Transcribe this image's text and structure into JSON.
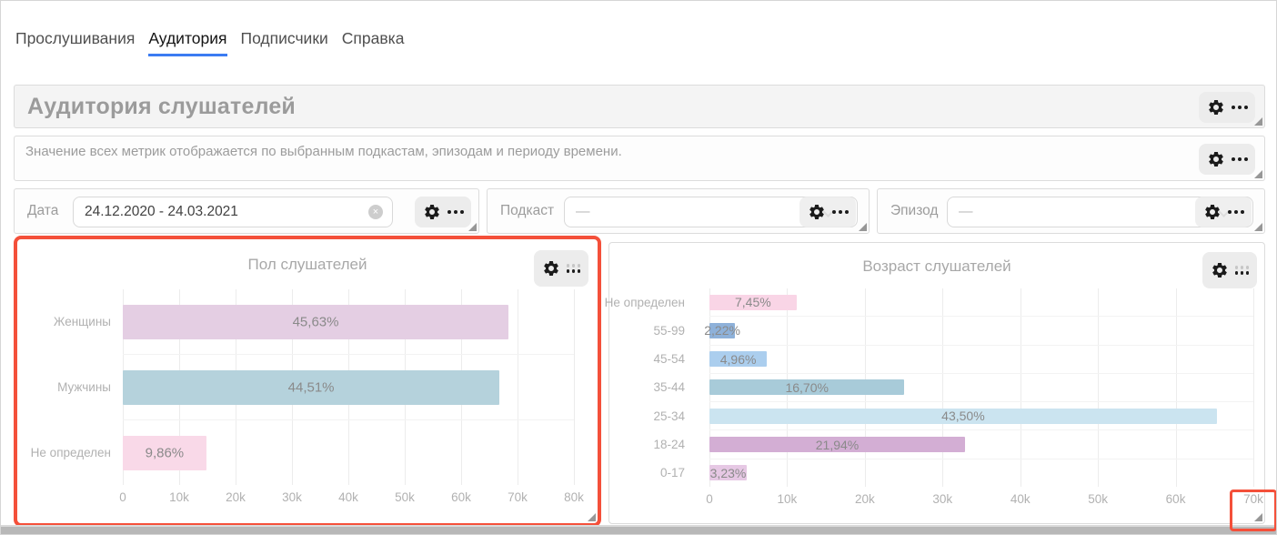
{
  "tabs": {
    "items": [
      {
        "label": "Прослушивания",
        "active": false
      },
      {
        "label": "Аудитория",
        "active": true
      },
      {
        "label": "Подписчики",
        "active": false
      },
      {
        "label": "Справка",
        "active": false
      }
    ]
  },
  "header": {
    "title": "Аудитория слушателей"
  },
  "description": {
    "text": "Значение всех метрик отображается по выбранным подкастам, эпизодам и периоду времени."
  },
  "filters": {
    "date": {
      "label": "Дата",
      "value": "24.12.2020 - 24.03.2021"
    },
    "podcast": {
      "label": "Подкаст",
      "value": "—"
    },
    "episode": {
      "label": "Эпизод",
      "value": "—"
    }
  },
  "icons": {
    "gear": "gear-icon",
    "ellipsis": "ellipsis-icon",
    "drag_dots": "drag-dots-icon",
    "clear": "×",
    "chevron_down": "chevron-down-icon",
    "resize": "resize-handle-icon"
  },
  "annotations": {
    "highlight_color": "#f4503a",
    "highlighted_panel": "Пол слушателей",
    "highlighted_axis_label": "70k"
  },
  "colors": {
    "accent_blue": "#3b7cf2",
    "annotation_red": "#f4503a",
    "header_panel_bg": "#f4f4f4",
    "button_bg": "#ececec",
    "grid": "#ececec",
    "axis_label_gray": "#b1b1b1",
    "value_label_gray": "#8a8a8a"
  },
  "chart_data": [
    {
      "type": "bar",
      "orientation": "horizontal",
      "title": "Пол слушателей",
      "categories": [
        "Женщины",
        "Мужчины",
        "Не определен"
      ],
      "values_percent": [
        45.63,
        44.51,
        9.86
      ],
      "value_labels": [
        "45,63%",
        "44,51%",
        "9,86%"
      ],
      "approx_listeners_k": [
        68.4,
        66.8,
        14.8
      ],
      "bar_colors": [
        "#e4cee3",
        "#b5d2dc",
        "#f9d9e8"
      ],
      "xlim_k": [
        0,
        80
      ],
      "x_ticks": [
        "0",
        "10k",
        "20k",
        "30k",
        "40k",
        "50k",
        "60k",
        "70k",
        "80k"
      ],
      "grid": true,
      "legend": false
    },
    {
      "type": "bar",
      "orientation": "horizontal",
      "title": "Возраст слушателей",
      "categories": [
        "Не определен",
        "55-99",
        "45-54",
        "35-44",
        "25-34",
        "18-24",
        "0-17"
      ],
      "values_percent": [
        7.45,
        2.22,
        4.96,
        16.7,
        43.5,
        21.94,
        3.23
      ],
      "value_labels": [
        "7,45%",
        "2,22%",
        "4,96%",
        "16,70%",
        "43,50%",
        "21,94%",
        "3,23%"
      ],
      "approx_listeners_k": [
        11.2,
        3.3,
        7.4,
        25.1,
        65.3,
        32.9,
        4.8
      ],
      "bar_colors": [
        "#f9d5e6",
        "#8eb1d9",
        "#abceee",
        "#a8cbd9",
        "#cbe4f0",
        "#d3aed4",
        "#e6c8e4"
      ],
      "xlim_k": [
        0,
        70
      ],
      "x_ticks": [
        "0",
        "10k",
        "20k",
        "30k",
        "40k",
        "50k",
        "60k",
        "70k"
      ],
      "grid": true,
      "legend": false
    }
  ]
}
